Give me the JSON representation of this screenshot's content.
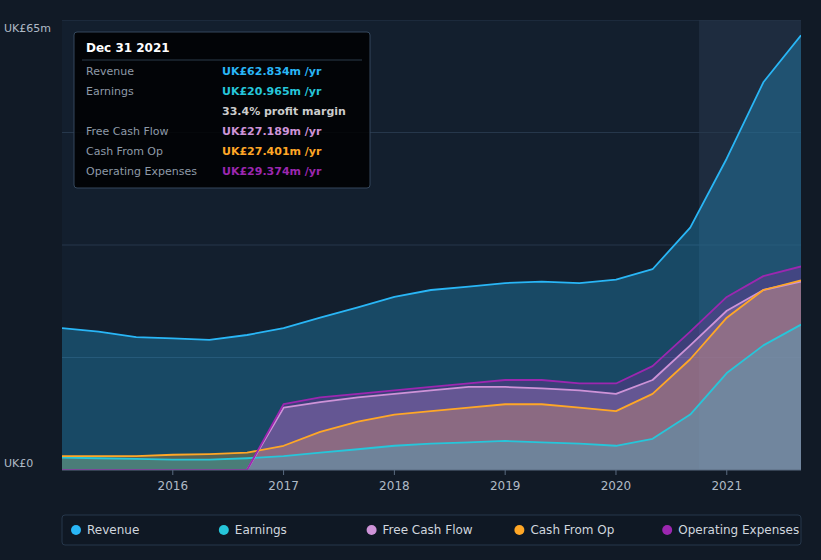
{
  "chart_data": {
    "type": "area",
    "x": [
      2015.0,
      2015.33,
      2015.67,
      2016.0,
      2016.33,
      2016.67,
      2017.0,
      2017.33,
      2017.67,
      2018.0,
      2018.33,
      2018.67,
      2019.0,
      2019.33,
      2019.67,
      2020.0,
      2020.33,
      2020.67,
      2021.0,
      2021.33,
      2021.67
    ],
    "series": [
      {
        "name": "Revenue",
        "color": "#29b6f6",
        "values": [
          20.5,
          20.0,
          19.2,
          19.0,
          18.8,
          19.5,
          20.5,
          22.0,
          23.5,
          25.0,
          26.0,
          26.5,
          27.0,
          27.2,
          27.0,
          27.5,
          29.0,
          35.0,
          45.0,
          56.0,
          62.8
        ]
      },
      {
        "name": "Earnings",
        "color": "#26c6da",
        "values": [
          1.8,
          1.7,
          1.6,
          1.5,
          1.5,
          1.7,
          2.0,
          2.5,
          3.0,
          3.5,
          3.8,
          4.0,
          4.2,
          4.0,
          3.8,
          3.5,
          4.5,
          8.0,
          14.0,
          18.0,
          21.0
        ]
      },
      {
        "name": "Free Cash Flow",
        "color": "#ce93d8",
        "values": [
          0.0,
          0.0,
          0.0,
          0.0,
          0.0,
          0.0,
          9.0,
          9.8,
          10.5,
          11.0,
          11.5,
          12.0,
          12.0,
          11.8,
          11.5,
          11.0,
          13.0,
          18.0,
          23.0,
          26.0,
          27.2
        ]
      },
      {
        "name": "Cash From Op",
        "color": "#ffa726",
        "values": [
          2.0,
          2.0,
          2.0,
          2.2,
          2.3,
          2.5,
          3.5,
          5.5,
          7.0,
          8.0,
          8.5,
          9.0,
          9.5,
          9.5,
          9.0,
          8.5,
          11.0,
          16.0,
          22.0,
          26.0,
          27.4
        ]
      },
      {
        "name": "Operating Expenses",
        "color": "#9c27b0",
        "values": [
          0.0,
          0.0,
          0.0,
          0.0,
          0.0,
          0.0,
          9.5,
          10.5,
          11.0,
          11.5,
          12.0,
          12.5,
          13.0,
          13.0,
          12.5,
          12.5,
          15.0,
          20.0,
          25.0,
          28.0,
          29.4
        ]
      }
    ],
    "xlim": [
      2015.0,
      2021.67
    ],
    "xticks": [
      2016,
      2017,
      2018,
      2019,
      2020,
      2021
    ],
    "ylim": [
      0,
      65
    ],
    "yticks": [
      {
        "value": 0,
        "label": "UK£0"
      },
      {
        "value": 16.25,
        "label": null
      },
      {
        "value": 32.5,
        "label": null
      },
      {
        "value": 48.75,
        "label": null
      },
      {
        "value": 65,
        "label": "UK£65m"
      }
    ],
    "grid": true,
    "legend": "bottom",
    "highlight_x": [
      2020.75,
      2021.67
    ],
    "info_box": {
      "title": "Dec 31 2021",
      "rows": [
        {
          "label": "Revenue",
          "value": "UK£62.834m /yr",
          "color": "#29b6f6"
        },
        {
          "label": "Earnings",
          "value": "UK£20.965m /yr",
          "color": "#26c6da"
        },
        {
          "value": "33.4% profit margin",
          "color": "#cccccc"
        },
        {
          "label": "Free Cash Flow",
          "value": "UK£27.189m /yr",
          "color": "#ce93d8"
        },
        {
          "label": "Cash From Op",
          "value": "UK£27.401m /yr",
          "color": "#ffa726"
        },
        {
          "label": "Operating Expenses",
          "value": "UK£29.374m /yr",
          "color": "#9c27b0"
        }
      ]
    }
  }
}
